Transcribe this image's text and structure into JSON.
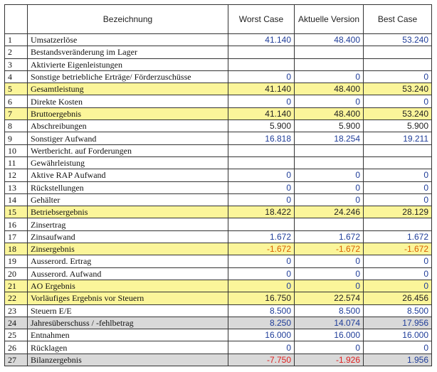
{
  "table": {
    "header": [
      "Bezeichnung",
      "Worst Case",
      "Aktuelle Version",
      "Best Case"
    ],
    "rows": [
      {
        "cells": [
          "1",
          "Umsatzerlöse",
          "41.140",
          "48.400",
          "53.240"
        ],
        "color": "#1f3d99"
      },
      {
        "cells": [
          "2",
          "Bestandsveränderung im Lager"
        ]
      },
      {
        "cells": [
          "3",
          "Aktivierte Eigenleistungen"
        ]
      },
      {
        "cells": [
          "4",
          "Sonstige betriebliche Erträge/ Förderzuschüsse",
          "0",
          "0",
          "0"
        ],
        "color": "#1f3d99"
      },
      {
        "cells": [
          "5",
          "Gesamtleistung",
          "41.140",
          "48.400",
          "53.240"
        ],
        "fill": "#fbf59a",
        "color": "#222222"
      },
      {
        "cells": [
          "6",
          "Direkte Kosten",
          "0",
          "0",
          "0"
        ],
        "color": "#1f3d99"
      },
      {
        "cells": [
          "7",
          "Bruttoergebnis",
          "41.140",
          "48.400",
          "53.240"
        ],
        "fill": "#fbf59a",
        "color": "#222222"
      },
      {
        "cells": [
          "8",
          "Abschreibungen",
          "5.900",
          "5.900",
          "5.900"
        ],
        "color": "#222222"
      },
      {
        "cells": [
          "9",
          "Sonstiger Aufwand",
          "16.818",
          "18.254",
          "19.211"
        ],
        "color": "#1f3d99"
      },
      {
        "cells": [
          "10",
          "Wertbericht. auf Forderungen"
        ]
      },
      {
        "cells": [
          "11",
          "Gewährleistung"
        ]
      },
      {
        "cells": [
          "12",
          "Aktive RAP Aufwand",
          "0",
          "0",
          "0"
        ],
        "color": "#1f3d99"
      },
      {
        "cells": [
          "13",
          "Rückstellungen",
          "0",
          "0",
          "0"
        ],
        "color": "#1f3d99"
      },
      {
        "cells": [
          "14",
          "Gehälter",
          "0",
          "0",
          "0"
        ],
        "color": "#1f3d99"
      },
      {
        "cells": [
          "15",
          "Betriebsergebnis",
          "18.422",
          "24.246",
          "28.129"
        ],
        "fill": "#fbf59a",
        "color": "#222222"
      },
      {
        "cells": [
          "16",
          "Zinsertrag"
        ]
      },
      {
        "cells": [
          "17",
          "Zinsaufwand",
          "1.672",
          "1.672",
          "1.672"
        ],
        "color": "#1f3d99"
      },
      {
        "cells": [
          "18",
          "Zinsergebnis",
          "-1.672",
          "-1.672",
          "-1.672"
        ],
        "fill": "#fbf59a",
        "color": "#d95f00"
      },
      {
        "cells": [
          "19",
          "Ausserord. Ertrag",
          "0",
          "0",
          "0"
        ],
        "color": "#1f3d99"
      },
      {
        "cells": [
          "20",
          "Ausserord. Aufwand",
          "0",
          "0",
          "0"
        ],
        "color": "#1f3d99"
      },
      {
        "cells": [
          "21",
          "AO Ergebnis",
          "0",
          "0",
          "0"
        ],
        "fill": "#fbf59a",
        "color": "#1f3d99"
      },
      {
        "cells": [
          "22",
          "Vorläufiges Ergebnis vor Steuern",
          "16.750",
          "22.574",
          "26.456"
        ],
        "fill": "#fbf59a",
        "color": "#222222"
      },
      {
        "cells": [
          "23",
          "Steuern E/E",
          "8.500",
          "8.500",
          "8.500"
        ],
        "color": "#1f3d99"
      },
      {
        "cells": [
          "24",
          "Jahresüberschuss / -fehlbetrag",
          "8.250",
          "14.074",
          "17.956"
        ],
        "fill": "#d9d9d9",
        "color": "#1f3d99"
      },
      {
        "cells": [
          "25",
          "Entnahmen",
          "16.000",
          "16.000",
          "16.000"
        ],
        "color": "#1f3d99"
      },
      {
        "cells": [
          "26",
          "Rücklagen",
          "0",
          "0",
          "0"
        ],
        "color": "#1f3d99"
      },
      {
        "cells": [
          "27",
          "Bilanzergebnis",
          "-7.750",
          "-1.926",
          "1.956"
        ],
        "fill": "#d9d9d9",
        "colors": [
          "#e02020",
          "#e02020",
          "#1f3d99"
        ]
      }
    ]
  }
}
